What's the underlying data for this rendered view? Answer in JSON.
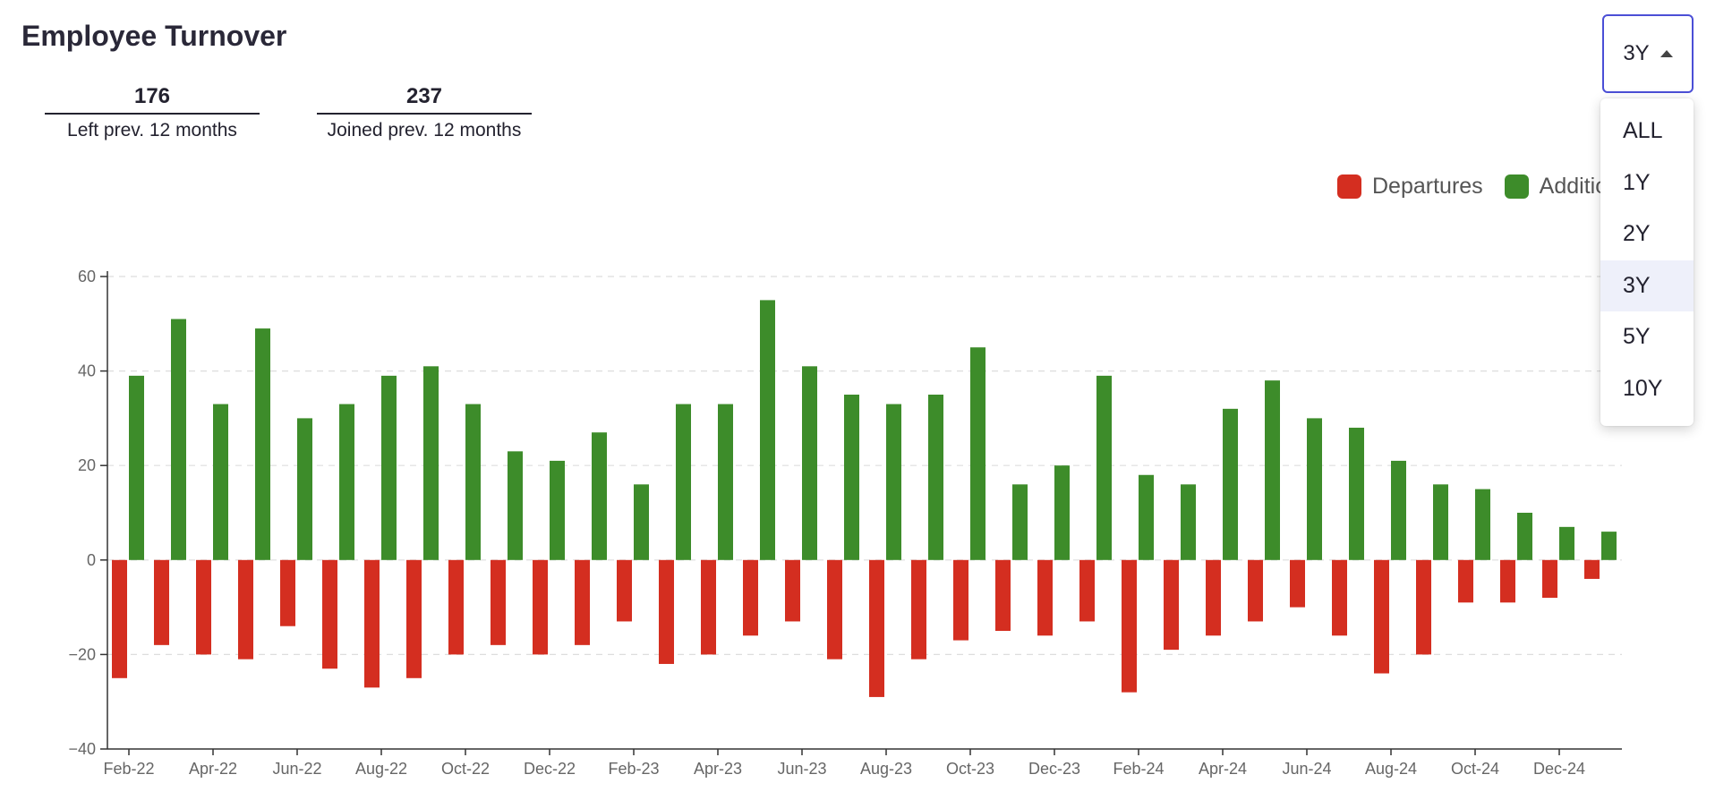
{
  "header": {
    "title": "Employee Turnover"
  },
  "stats": [
    {
      "value": "176",
      "label": "Left prev. 12 months"
    },
    {
      "value": "237",
      "label": "Joined prev. 12 months"
    }
  ],
  "range_selector": {
    "selected": "3Y",
    "options": [
      "ALL",
      "1Y",
      "2Y",
      "3Y",
      "5Y",
      "10Y"
    ]
  },
  "legend": [
    {
      "name": "Departures",
      "color": "#d42e20"
    },
    {
      "name": "Additions",
      "color": "#3d8c2a"
    }
  ],
  "chart_data": {
    "type": "bar",
    "categories": [
      "Feb-22",
      "Mar-22",
      "Apr-22",
      "May-22",
      "Jun-22",
      "Jul-22",
      "Aug-22",
      "Sep-22",
      "Oct-22",
      "Nov-22",
      "Dec-22",
      "Jan-23",
      "Feb-23",
      "Mar-23",
      "Apr-23",
      "May-23",
      "Jun-23",
      "Jul-23",
      "Aug-23",
      "Sep-23",
      "Oct-23",
      "Nov-23",
      "Dec-23",
      "Jan-24",
      "Feb-24",
      "Mar-24",
      "Apr-24",
      "May-24",
      "Jun-24",
      "Jul-24",
      "Aug-24",
      "Sep-24",
      "Oct-24",
      "Nov-24",
      "Dec-24",
      "Jan-25"
    ],
    "tick_labels": [
      "Feb-22",
      "Apr-22",
      "Jun-22",
      "Aug-22",
      "Oct-22",
      "Dec-22",
      "Feb-23",
      "Apr-23",
      "Jun-23",
      "Aug-23",
      "Oct-23",
      "Dec-23",
      "Feb-24",
      "Apr-24",
      "Jun-24",
      "Aug-24",
      "Oct-24",
      "Dec-24"
    ],
    "series": [
      {
        "name": "Departures",
        "color": "#d42e20",
        "values": [
          -25,
          -18,
          -20,
          -21,
          -14,
          -23,
          -27,
          -25,
          -20,
          -18,
          -20,
          -18,
          -13,
          -22,
          -20,
          -16,
          -13,
          -21,
          -29,
          -21,
          -17,
          -15,
          -16,
          -13,
          -28,
          -19,
          -16,
          -13,
          -10,
          -16,
          -24,
          -20,
          -9,
          -9,
          -8,
          -4
        ]
      },
      {
        "name": "Additions",
        "color": "#3d8c2a",
        "values": [
          39,
          51,
          33,
          49,
          30,
          33,
          39,
          41,
          33,
          23,
          21,
          27,
          16,
          33,
          33,
          55,
          41,
          35,
          33,
          35,
          45,
          16,
          20,
          39,
          18,
          16,
          32,
          38,
          30,
          28,
          21,
          16,
          15,
          10,
          7,
          6
        ]
      }
    ],
    "yticks": [
      -40,
      -20,
      0,
      20,
      40,
      60
    ],
    "ylim": [
      -40,
      60
    ],
    "grid": "horizontal dashed",
    "legend_position": "top-right"
  }
}
